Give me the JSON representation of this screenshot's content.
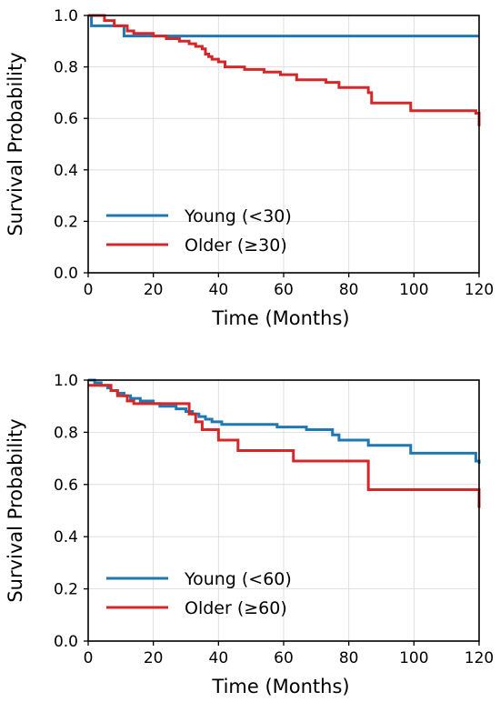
{
  "chart_data": [
    {
      "type": "line",
      "step": true,
      "title": "",
      "xlabel": "Time (Months)",
      "ylabel": "Survival Probability",
      "xlim": [
        0,
        120
      ],
      "ylim": [
        0,
        1.0
      ],
      "xticks": [
        "0",
        "20",
        "40",
        "60",
        "80",
        "100",
        "120"
      ],
      "yticks": [
        "0.0",
        "0.2",
        "0.4",
        "0.6",
        "0.8",
        "1.0"
      ],
      "grid": true,
      "legend_position": "lower-left",
      "series": [
        {
          "name": "Young (<30)",
          "color": "#1f77b4",
          "points": [
            [
              0,
              1.0
            ],
            [
              1,
              0.96
            ],
            [
              10,
              0.96
            ],
            [
              11,
              0.92
            ],
            [
              120,
              0.92
            ]
          ]
        },
        {
          "name": "Older (≥30)",
          "color": "#d62728",
          "points": [
            [
              0,
              1.0
            ],
            [
              5,
              0.98
            ],
            [
              8,
              0.96
            ],
            [
              12,
              0.94
            ],
            [
              14,
              0.93
            ],
            [
              20,
              0.92
            ],
            [
              24,
              0.91
            ],
            [
              28,
              0.9
            ],
            [
              31,
              0.89
            ],
            [
              33,
              0.88
            ],
            [
              35,
              0.87
            ],
            [
              36,
              0.85
            ],
            [
              37,
              0.84
            ],
            [
              38,
              0.83
            ],
            [
              40,
              0.82
            ],
            [
              42,
              0.8
            ],
            [
              48,
              0.79
            ],
            [
              54,
              0.78
            ],
            [
              59,
              0.77
            ],
            [
              64,
              0.75
            ],
            [
              73,
              0.74
            ],
            [
              77,
              0.72
            ],
            [
              86,
              0.7
            ],
            [
              87,
              0.66
            ],
            [
              99,
              0.63
            ],
            [
              112,
              0.63
            ],
            [
              119,
              0.62
            ],
            [
              120,
              0.57
            ]
          ]
        }
      ]
    },
    {
      "type": "line",
      "step": true,
      "title": "",
      "xlabel": "Time (Months)",
      "ylabel": "Survival Probability",
      "xlim": [
        0,
        120
      ],
      "ylim": [
        0,
        1.0
      ],
      "xticks": [
        "0",
        "20",
        "40",
        "60",
        "80",
        "100",
        "120"
      ],
      "yticks": [
        "0.0",
        "0.2",
        "0.4",
        "0.6",
        "0.8",
        "1.0"
      ],
      "grid": true,
      "legend_position": "lower-left",
      "series": [
        {
          "name": "Young (<60)",
          "color": "#1f77b4",
          "points": [
            [
              0,
              1.0
            ],
            [
              2,
              0.99
            ],
            [
              4,
              0.98
            ],
            [
              6,
              0.97
            ],
            [
              7,
              0.96
            ],
            [
              9,
              0.95
            ],
            [
              11,
              0.94
            ],
            [
              13,
              0.93
            ],
            [
              16,
              0.92
            ],
            [
              20,
              0.91
            ],
            [
              22,
              0.9
            ],
            [
              27,
              0.89
            ],
            [
              30,
              0.88
            ],
            [
              32,
              0.87
            ],
            [
              34,
              0.86
            ],
            [
              36,
              0.85
            ],
            [
              38,
              0.84
            ],
            [
              41,
              0.83
            ],
            [
              58,
              0.82
            ],
            [
              67,
              0.81
            ],
            [
              75,
              0.79
            ],
            [
              77,
              0.77
            ],
            [
              86,
              0.75
            ],
            [
              99,
              0.72
            ],
            [
              119,
              0.69
            ],
            [
              120,
              0.68
            ]
          ]
        },
        {
          "name": "Older (≥60)",
          "color": "#d62728",
          "points": [
            [
              0,
              0.98
            ],
            [
              3,
              0.98
            ],
            [
              7,
              0.96
            ],
            [
              9,
              0.94
            ],
            [
              12,
              0.92
            ],
            [
              14,
              0.91
            ],
            [
              31,
              0.87
            ],
            [
              33,
              0.84
            ],
            [
              35,
              0.81
            ],
            [
              40,
              0.77
            ],
            [
              46,
              0.73
            ],
            [
              63,
              0.69
            ],
            [
              86,
              0.58
            ],
            [
              120,
              0.58
            ],
            [
              120,
              0.51
            ]
          ]
        }
      ]
    }
  ]
}
